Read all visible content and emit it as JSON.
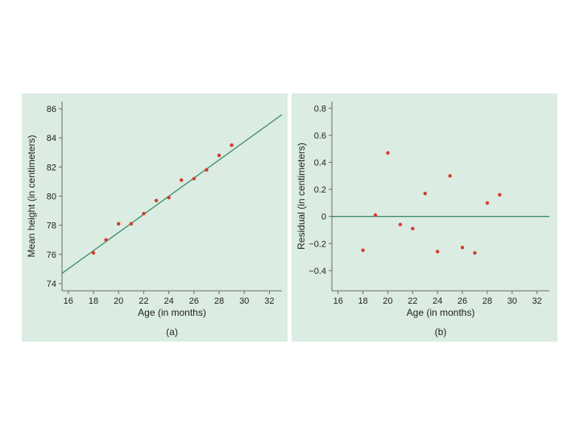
{
  "colors": {
    "panel_bg": "#dbece2",
    "fit_line": "#3f8a6a",
    "zero_line": "#3f8a6a",
    "point": "#d63a2c",
    "axis": "#6a6a6a"
  },
  "chart_data": [
    {
      "type": "scatter",
      "panel_label": "(a)",
      "xlabel": "Age (in months)",
      "ylabel": "Mean height (in centimeters)",
      "xlim": [
        15.5,
        33
      ],
      "ylim": [
        73.5,
        86.5
      ],
      "xticks": [
        16,
        18,
        20,
        22,
        24,
        26,
        28,
        30,
        32
      ],
      "yticks": [
        74,
        76,
        78,
        80,
        82,
        84,
        86
      ],
      "grid": false,
      "points": {
        "x": [
          18,
          19,
          20,
          21,
          22,
          23,
          24,
          25,
          26,
          27,
          28,
          29
        ],
        "y": [
          76.1,
          77.0,
          78.1,
          78.1,
          78.8,
          79.7,
          79.9,
          81.1,
          81.2,
          81.8,
          82.8,
          83.5
        ]
      },
      "fit_line": {
        "x": [
          15.5,
          33
        ],
        "y": [
          74.7,
          85.6
        ]
      }
    },
    {
      "type": "scatter",
      "panel_label": "(b)",
      "xlabel": "Age (in months)",
      "ylabel": "Residual (in centimeters)",
      "xlim": [
        15.5,
        33
      ],
      "ylim": [
        -0.55,
        0.85
      ],
      "xticks": [
        16,
        18,
        20,
        22,
        24,
        26,
        28,
        30,
        32
      ],
      "yticks": [
        0.8,
        0.6,
        0.4,
        0.2,
        0,
        -0.2,
        -0.4
      ],
      "ytick_labels": [
        "0.8",
        "0.6",
        "0.4",
        "0.2",
        "0",
        "−0.2",
        "−0.4"
      ],
      "grid": false,
      "points": {
        "x": [
          18,
          19,
          20,
          21,
          22,
          23,
          24,
          25,
          26,
          27,
          28,
          29
        ],
        "y": [
          -0.25,
          0.01,
          0.47,
          -0.06,
          -0.09,
          0.17,
          -0.26,
          0.3,
          -0.23,
          -0.27,
          0.1,
          0.16
        ]
      },
      "reference_line": {
        "y": 0
      }
    }
  ]
}
